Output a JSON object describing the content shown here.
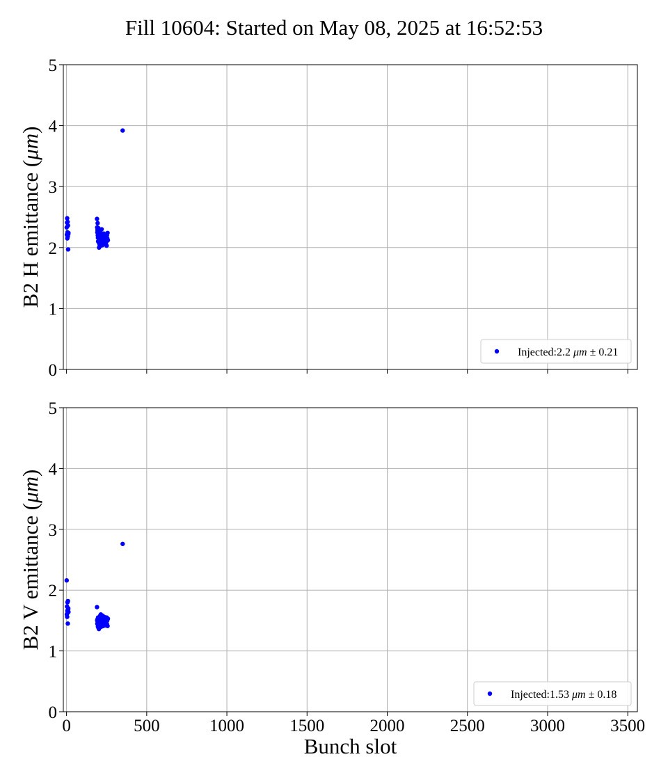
{
  "figure": {
    "title": "Fill 10604: Started on May 08, 2025 at 16:52:53"
  },
  "chart_data": [
    {
      "type": "scatter",
      "title": "",
      "xlabel": "",
      "ylabel_prefix": "B2 H emittance (",
      "ylabel_unit": "μm",
      "ylabel_suffix": ")",
      "xlim": [
        -20,
        3560
      ],
      "ylim": [
        0,
        5
      ],
      "xticks": [
        0,
        500,
        1000,
        1500,
        2000,
        2500,
        3000,
        3500
      ],
      "xtick_labels_visible": false,
      "yticks": [
        0,
        1,
        2,
        3,
        4,
        5
      ],
      "grid": true,
      "legend_position": "lower-right",
      "color": "#0000ff",
      "series": [
        {
          "legend_prefix": "Injected:2.2 ",
          "legend_unit": "μm",
          "legend_suffix": " ± 0.21",
          "x": [
            1,
            2,
            3,
            4,
            5,
            6,
            7,
            8,
            9,
            10,
            11,
            12,
            190,
            191,
            192,
            193,
            194,
            195,
            196,
            197,
            198,
            199,
            200,
            201,
            202,
            203,
            204,
            205,
            206,
            207,
            208,
            209,
            210,
            211,
            212,
            213,
            214,
            215,
            216,
            217,
            218,
            219,
            220,
            221,
            222,
            223,
            224,
            225,
            226,
            227,
            228,
            229,
            230,
            231,
            232,
            233,
            234,
            235,
            236,
            237,
            238,
            239,
            240,
            241,
            242,
            243,
            244,
            245,
            246,
            247,
            248,
            249,
            250,
            252,
            254,
            256,
            258,
            350
          ],
          "y": [
            2.33,
            2.21,
            2.41,
            2.48,
            2.15,
            2.25,
            2.42,
            2.18,
            2.36,
            1.97,
            2.22,
            2.24,
            2.47,
            2.33,
            2.25,
            2.29,
            2.4,
            2.2,
            2.16,
            2.1,
            2.32,
            2.27,
            2.23,
            2.18,
            2.08,
            2.0,
            2.13,
            2.27,
            2.05,
            2.18,
            2.21,
            2.14,
            2.06,
            2.2,
            2.1,
            2.24,
            2.03,
            2.15,
            2.12,
            2.19,
            2.08,
            2.3,
            2.13,
            2.17,
            2.09,
            2.22,
            2.04,
            2.16,
            2.11,
            2.2,
            2.07,
            2.14,
            2.18,
            2.1,
            2.23,
            2.06,
            2.15,
            2.12,
            2.19,
            2.08,
            2.16,
            2.21,
            2.1,
            2.13,
            2.18,
            2.05,
            2.2,
            2.14,
            2.11,
            2.17,
            2.09,
            2.13,
            2.03,
            2.2,
            2.15,
            2.24,
            2.12,
            3.92
          ]
        }
      ]
    },
    {
      "type": "scatter",
      "title": "",
      "xlabel": "Bunch slot",
      "ylabel_prefix": "B2 V emittance (",
      "ylabel_unit": "μm",
      "ylabel_suffix": ")",
      "xlim": [
        -20,
        3560
      ],
      "ylim": [
        0,
        5
      ],
      "xticks": [
        0,
        500,
        1000,
        1500,
        2000,
        2500,
        3000,
        3500
      ],
      "xtick_labels_visible": true,
      "yticks": [
        0,
        1,
        2,
        3,
        4,
        5
      ],
      "grid": true,
      "legend_position": "lower-right",
      "color": "#0000ff",
      "series": [
        {
          "legend_prefix": "Injected:1.53 ",
          "legend_unit": "μm",
          "legend_suffix": " ± 0.18",
          "x": [
            1,
            2,
            3,
            4,
            5,
            6,
            7,
            8,
            9,
            10,
            11,
            12,
            190,
            191,
            192,
            193,
            194,
            195,
            196,
            197,
            198,
            199,
            200,
            201,
            202,
            203,
            204,
            205,
            206,
            207,
            208,
            209,
            210,
            211,
            212,
            213,
            214,
            215,
            216,
            217,
            218,
            219,
            220,
            221,
            222,
            223,
            224,
            225,
            226,
            227,
            228,
            229,
            230,
            231,
            232,
            233,
            234,
            235,
            236,
            237,
            238,
            239,
            240,
            241,
            242,
            243,
            244,
            245,
            246,
            247,
            248,
            249,
            250,
            252,
            254,
            256,
            258,
            350
          ],
          "y": [
            2.16,
            1.6,
            1.73,
            1.56,
            1.66,
            1.8,
            1.63,
            1.45,
            1.82,
            1.68,
            1.7,
            1.64,
            1.72,
            1.5,
            1.45,
            1.52,
            1.44,
            1.48,
            1.4,
            1.55,
            1.46,
            1.38,
            1.5,
            1.43,
            1.36,
            1.47,
            1.52,
            1.41,
            1.55,
            1.49,
            1.44,
            1.39,
            1.58,
            1.46,
            1.42,
            1.51,
            1.6,
            1.48,
            1.44,
            1.53,
            1.4,
            1.5,
            1.56,
            1.45,
            1.47,
            1.52,
            1.43,
            1.58,
            1.49,
            1.46,
            1.54,
            1.41,
            1.5,
            1.47,
            1.53,
            1.44,
            1.49,
            1.56,
            1.45,
            1.51,
            1.48,
            1.42,
            1.54,
            1.47,
            1.5,
            1.45,
            1.52,
            1.48,
            1.43,
            1.51,
            1.46,
            1.49,
            1.55,
            1.44,
            1.5,
            1.41,
            1.53,
            2.76
          ]
        }
      ]
    }
  ]
}
